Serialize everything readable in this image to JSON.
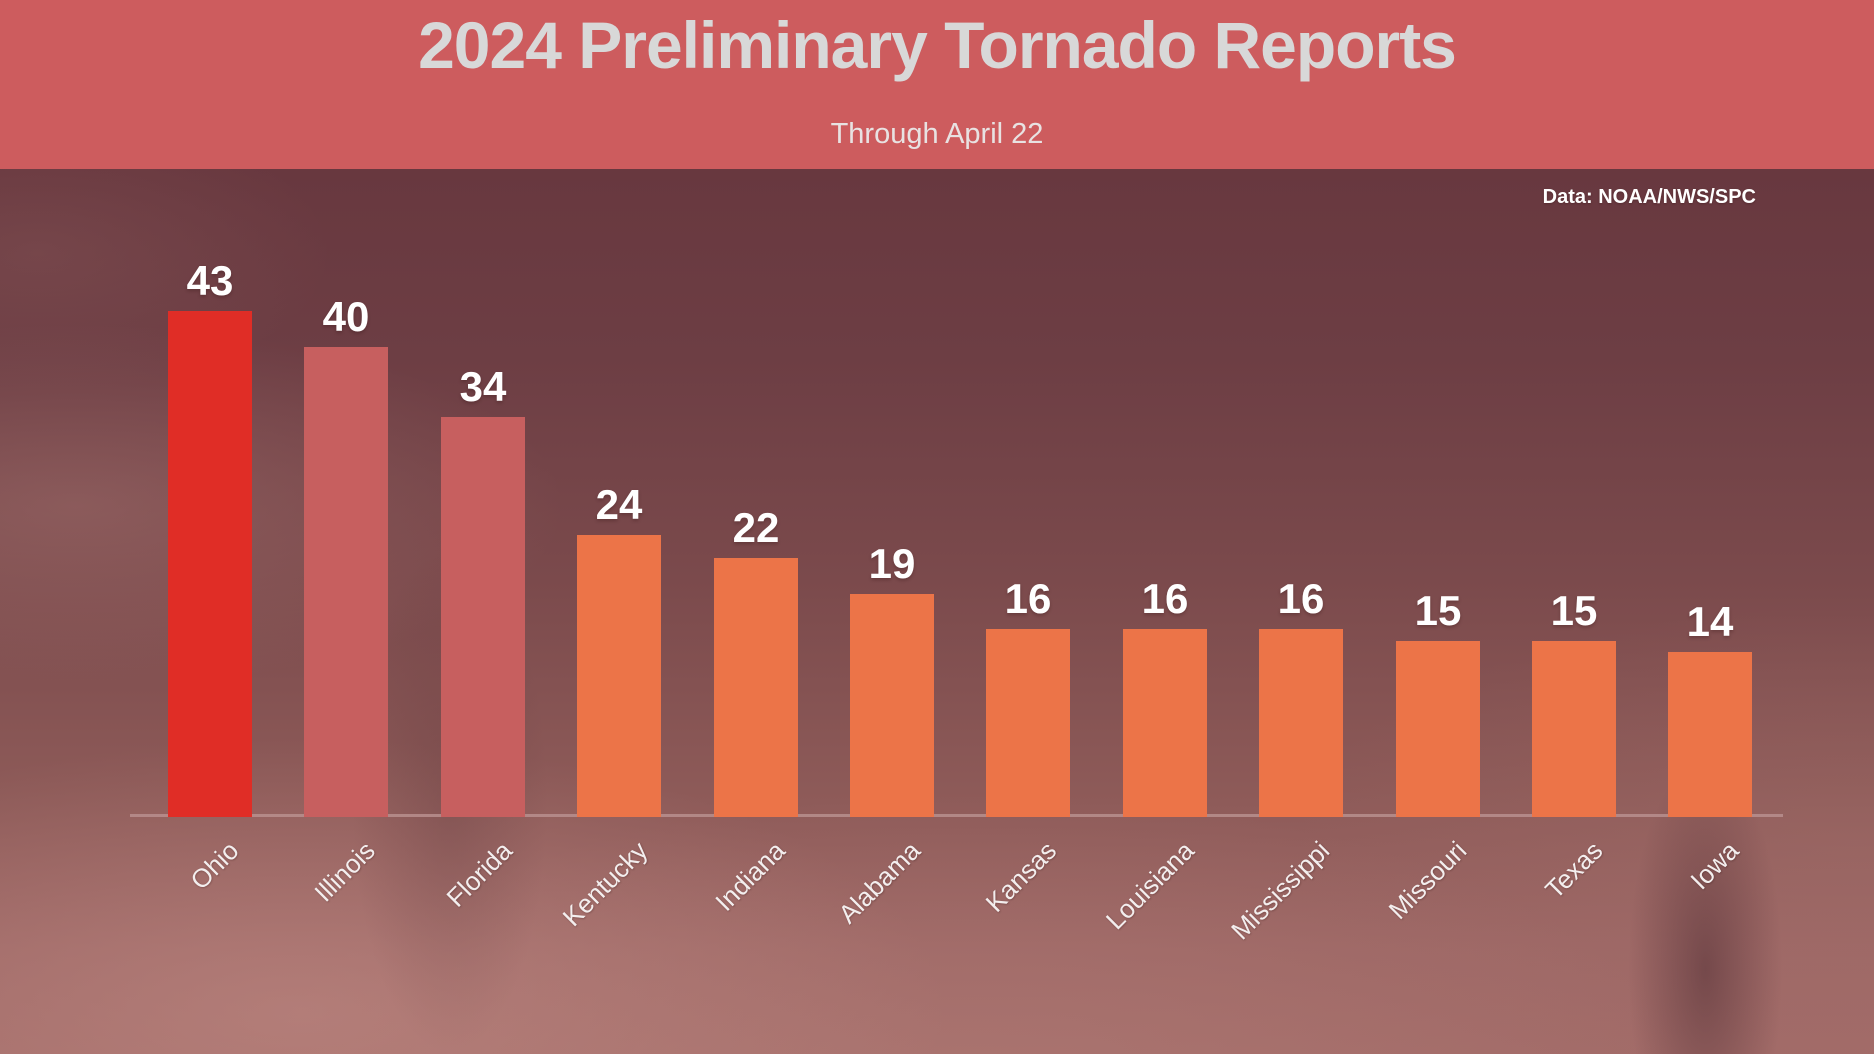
{
  "header": {
    "title": "2024 Preliminary Tornado Reports",
    "subtitle": "Through April 22",
    "background_color": "#cd5c5e",
    "title_color": "#d8d8d8",
    "subtitle_color": "#e8e2e2"
  },
  "attribution": {
    "label": "Data: NOAA/NWS/SPC",
    "color": "#ffffff"
  },
  "background": {
    "photo_top_color": "#5c333a",
    "photo_bottom_color": "#a26b68"
  },
  "chart_data": {
    "type": "bar",
    "title": "2024 Preliminary Tornado Reports",
    "subtitle": "Through April 22",
    "source": "Data: NOAA/NWS/SPC",
    "categories": [
      "Ohio",
      "Illinois",
      "Florida",
      "Kentucky",
      "Indiana",
      "Alabama",
      "Kansas",
      "Louisiana",
      "Mississippi",
      "Missouri",
      "Texas",
      "Iowa"
    ],
    "values": [
      43,
      40,
      34,
      24,
      22,
      19,
      16,
      16,
      16,
      15,
      15,
      14
    ],
    "bar_colors": [
      "#e02d26",
      "#c75f5f",
      "#c75f5f",
      "#ec7448",
      "#ec7448",
      "#ec7448",
      "#ec7448",
      "#ec7448",
      "#ec7448",
      "#ec7448",
      "#ec7448",
      "#ec7448"
    ],
    "highlight_color": "#e02d26",
    "secondary_color": "#c75f5f",
    "default_color": "#ec7448",
    "value_label_color": "#ffffff",
    "tick_label_color": "#f3eeee",
    "axis_line_color": "#b98f8e",
    "xlabel": "",
    "ylabel": "",
    "ylim": [
      0,
      47
    ],
    "grid": false,
    "legend": false,
    "value_labels_shown": true,
    "tick_rotation_deg": 45
  }
}
